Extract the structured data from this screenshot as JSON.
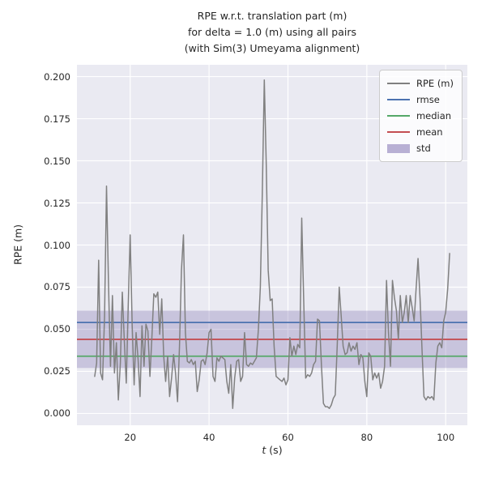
{
  "figure": {
    "title_lines": [
      "RPE w.r.t. translation part (m)",
      "for delta = 1.0 (m) using all pairs",
      "(with Sim(3) Umeyama alignment)"
    ],
    "xlabel_var": "t",
    "xlabel_unit": " (s)",
    "ylabel": "RPE (m)"
  },
  "chart_data": {
    "type": "line",
    "title": "RPE w.r.t. translation part (m) for delta = 1.0 (m) using all pairs (with Sim(3) Umeyama alignment)",
    "xlabel": "t (s)",
    "ylabel": "RPE (m)",
    "xlim": [
      6.5,
      105.5
    ],
    "ylim": [
      -0.007,
      0.207
    ],
    "x_ticks": [
      20,
      40,
      60,
      80,
      100
    ],
    "y_ticks": [
      0,
      0.025,
      0.05,
      0.075,
      0.1,
      0.125,
      0.15,
      0.175,
      0.2
    ],
    "grid": true,
    "legend_position": "upper right",
    "stats": {
      "rmse": 0.054,
      "mean": 0.044,
      "median": 0.034,
      "std": 0.017
    },
    "colors": {
      "rpe": "#808080",
      "rmse": "#4C72B0",
      "median": "#55A868",
      "mean": "#C44E52",
      "std_fill": "#8172B2",
      "plot_bg": "#EAEAF2",
      "grid": "#FFFFFF"
    },
    "legend": {
      "items": [
        {
          "key": "rpe",
          "label": "RPE (m)",
          "type": "line",
          "color": "#808080"
        },
        {
          "key": "rmse",
          "label": "rmse",
          "type": "line",
          "color": "#4C72B0"
        },
        {
          "key": "median",
          "label": "median",
          "type": "line",
          "color": "#55A868"
        },
        {
          "key": "mean",
          "label": "mean",
          "type": "line",
          "color": "#C44E52"
        },
        {
          "key": "std",
          "label": "std",
          "type": "patch",
          "color": "#8172B2"
        }
      ]
    },
    "series": [
      {
        "name": "RPE (m)",
        "color": "#808080",
        "points": [
          [
            11,
            0.022
          ],
          [
            11.5,
            0.03
          ],
          [
            12,
            0.091
          ],
          [
            12.5,
            0.024
          ],
          [
            13,
            0.02
          ],
          [
            13.5,
            0.058
          ],
          [
            14,
            0.135
          ],
          [
            14.5,
            0.078
          ],
          [
            15,
            0.028
          ],
          [
            15.5,
            0.07
          ],
          [
            16,
            0.024
          ],
          [
            16.5,
            0.042
          ],
          [
            17,
            0.008
          ],
          [
            17.5,
            0.03
          ],
          [
            18,
            0.072
          ],
          [
            18.5,
            0.044
          ],
          [
            19,
            0.018
          ],
          [
            19.5,
            0.064
          ],
          [
            20,
            0.106
          ],
          [
            20.5,
            0.052
          ],
          [
            21,
            0.017
          ],
          [
            21.5,
            0.048
          ],
          [
            22,
            0.032
          ],
          [
            22.5,
            0.01
          ],
          [
            23,
            0.052
          ],
          [
            23.5,
            0.028
          ],
          [
            24,
            0.053
          ],
          [
            24.5,
            0.049
          ],
          [
            25,
            0.022
          ],
          [
            25.5,
            0.045
          ],
          [
            26,
            0.071
          ],
          [
            26.5,
            0.069
          ],
          [
            27,
            0.072
          ],
          [
            27.5,
            0.047
          ],
          [
            28,
            0.068
          ],
          [
            28.5,
            0.034
          ],
          [
            29,
            0.019
          ],
          [
            29.5,
            0.034
          ],
          [
            30,
            0.01
          ],
          [
            30.5,
            0.021
          ],
          [
            31,
            0.035
          ],
          [
            31.5,
            0.024
          ],
          [
            32,
            0.007
          ],
          [
            32.5,
            0.04
          ],
          [
            33,
            0.085
          ],
          [
            33.5,
            0.106
          ],
          [
            34,
            0.048
          ],
          [
            34.5,
            0.031
          ],
          [
            35,
            0.03
          ],
          [
            35.5,
            0.032
          ],
          [
            36,
            0.029
          ],
          [
            36.5,
            0.031
          ],
          [
            37,
            0.013
          ],
          [
            37.5,
            0.02
          ],
          [
            38,
            0.031
          ],
          [
            38.5,
            0.032
          ],
          [
            39,
            0.029
          ],
          [
            39.5,
            0.036
          ],
          [
            40,
            0.048
          ],
          [
            40.5,
            0.05
          ],
          [
            41,
            0.022
          ],
          [
            41.5,
            0.019
          ],
          [
            42,
            0.033
          ],
          [
            42.5,
            0.031
          ],
          [
            43,
            0.034
          ],
          [
            43.5,
            0.033
          ],
          [
            44,
            0.032
          ],
          [
            44.5,
            0.019
          ],
          [
            45,
            0.012
          ],
          [
            45.5,
            0.029
          ],
          [
            46,
            0.003
          ],
          [
            46.5,
            0.021
          ],
          [
            47,
            0.031
          ],
          [
            47.5,
            0.032
          ],
          [
            48,
            0.019
          ],
          [
            48.5,
            0.022
          ],
          [
            49,
            0.048
          ],
          [
            49.5,
            0.029
          ],
          [
            50,
            0.028
          ],
          [
            50.5,
            0.03
          ],
          [
            51,
            0.029
          ],
          [
            51.5,
            0.031
          ],
          [
            52,
            0.033
          ],
          [
            52.5,
            0.05
          ],
          [
            53,
            0.075
          ],
          [
            53.5,
            0.13
          ],
          [
            54,
            0.198
          ],
          [
            54.5,
            0.148
          ],
          [
            55,
            0.085
          ],
          [
            55.5,
            0.067
          ],
          [
            56,
            0.068
          ],
          [
            56.5,
            0.04
          ],
          [
            57,
            0.022
          ],
          [
            57.5,
            0.021
          ],
          [
            58,
            0.02
          ],
          [
            58.5,
            0.019
          ],
          [
            59,
            0.021
          ],
          [
            59.5,
            0.017
          ],
          [
            60,
            0.02
          ],
          [
            60.5,
            0.045
          ],
          [
            61,
            0.034
          ],
          [
            61.5,
            0.04
          ],
          [
            62,
            0.035
          ],
          [
            62.5,
            0.041
          ],
          [
            63,
            0.039
          ],
          [
            63.5,
            0.116
          ],
          [
            64,
            0.068
          ],
          [
            64.5,
            0.021
          ],
          [
            65,
            0.023
          ],
          [
            65.5,
            0.022
          ],
          [
            66,
            0.024
          ],
          [
            66.5,
            0.029
          ],
          [
            67,
            0.031
          ],
          [
            67.5,
            0.056
          ],
          [
            68,
            0.055
          ],
          [
            68.5,
            0.028
          ],
          [
            69,
            0.006
          ],
          [
            69.5,
            0.004
          ],
          [
            70,
            0.004
          ],
          [
            70.5,
            0.003
          ],
          [
            71,
            0.005
          ],
          [
            71.5,
            0.009
          ],
          [
            72,
            0.011
          ],
          [
            72.5,
            0.04
          ],
          [
            73,
            0.075
          ],
          [
            73.5,
            0.058
          ],
          [
            74,
            0.04
          ],
          [
            74.5,
            0.035
          ],
          [
            75,
            0.036
          ],
          [
            75.5,
            0.042
          ],
          [
            76,
            0.037
          ],
          [
            76.5,
            0.04
          ],
          [
            77,
            0.038
          ],
          [
            77.5,
            0.042
          ],
          [
            78,
            0.029
          ],
          [
            78.5,
            0.035
          ],
          [
            79,
            0.033
          ],
          [
            79.5,
            0.019
          ],
          [
            80,
            0.01
          ],
          [
            80.5,
            0.036
          ],
          [
            81,
            0.034
          ],
          [
            81.5,
            0.02
          ],
          [
            82,
            0.024
          ],
          [
            82.5,
            0.021
          ],
          [
            83,
            0.024
          ],
          [
            83.5,
            0.015
          ],
          [
            84,
            0.019
          ],
          [
            84.5,
            0.028
          ],
          [
            85,
            0.079
          ],
          [
            85.5,
            0.048
          ],
          [
            86,
            0.028
          ],
          [
            86.5,
            0.079
          ],
          [
            87,
            0.069
          ],
          [
            87.5,
            0.061
          ],
          [
            88,
            0.044
          ],
          [
            88.5,
            0.07
          ],
          [
            89,
            0.054
          ],
          [
            89.5,
            0.06
          ],
          [
            90,
            0.07
          ],
          [
            90.5,
            0.054
          ],
          [
            91,
            0.07
          ],
          [
            91.5,
            0.063
          ],
          [
            92,
            0.055
          ],
          [
            92.5,
            0.074
          ],
          [
            93,
            0.092
          ],
          [
            93.5,
            0.068
          ],
          [
            94,
            0.038
          ],
          [
            94.5,
            0.01
          ],
          [
            95,
            0.008
          ],
          [
            95.5,
            0.01
          ],
          [
            96,
            0.009
          ],
          [
            96.5,
            0.01
          ],
          [
            97,
            0.008
          ],
          [
            97.5,
            0.03
          ],
          [
            98,
            0.04
          ],
          [
            98.5,
            0.042
          ],
          [
            99,
            0.039
          ],
          [
            99.5,
            0.055
          ],
          [
            100,
            0.06
          ],
          [
            100.5,
            0.074
          ],
          [
            101,
            0.095
          ]
        ]
      }
    ]
  }
}
